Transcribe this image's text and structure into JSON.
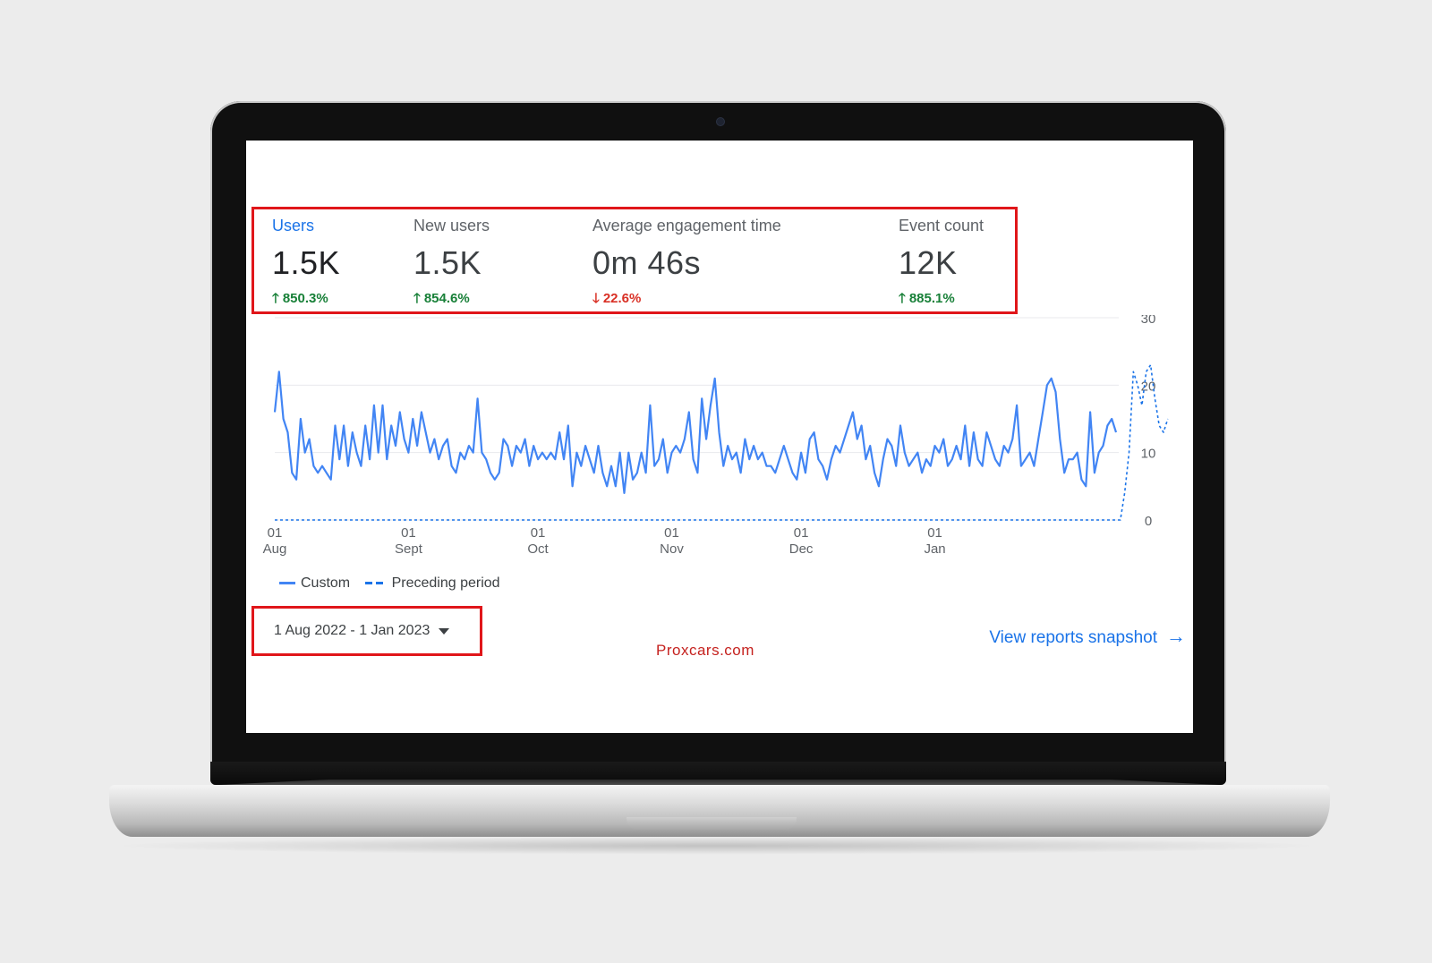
{
  "metrics": [
    {
      "label": "Users",
      "value": "1.5K",
      "change": "850.3%",
      "direction": "up",
      "active": true
    },
    {
      "label": "New users",
      "value": "1.5K",
      "change": "854.6%",
      "direction": "up",
      "active": false
    },
    {
      "label": "Average engagement time",
      "value": "0m 46s",
      "change": "22.6%",
      "direction": "down",
      "active": false
    },
    {
      "label": "Event count",
      "value": "12K",
      "change": "885.1%",
      "direction": "up",
      "active": false
    }
  ],
  "legend": {
    "custom": "Custom",
    "preceding": "Preceding period"
  },
  "date_range": {
    "label": "1 Aug 2022 - 1 Jan 2023"
  },
  "watermark": "Proxcars.com",
  "snapshot_link": {
    "label": "View reports snapshot"
  },
  "colors": {
    "accent": "#1a73e8",
    "line": "#4285f4",
    "up": "#188038",
    "down": "#d93025",
    "highlight_box": "#e0161a"
  },
  "chart_data": {
    "type": "line",
    "ylim": [
      0,
      30
    ],
    "yticks": [
      "30",
      "20",
      "10",
      "0"
    ],
    "xticks": [
      {
        "day": "01",
        "month": "Aug",
        "index": 0
      },
      {
        "day": "01",
        "month": "Sept",
        "index": 31
      },
      {
        "day": "01",
        "month": "Oct",
        "index": 61
      },
      {
        "day": "01",
        "month": "Nov",
        "index": 92
      },
      {
        "day": "01",
        "month": "Dec",
        "index": 122
      },
      {
        "day": "01",
        "month": "Jan",
        "index": 153
      }
    ],
    "series": [
      {
        "name": "Custom",
        "style": "solid",
        "values": [
          16,
          22,
          15,
          13,
          7,
          6,
          15,
          10,
          12,
          8,
          7,
          8,
          7,
          6,
          14,
          9,
          14,
          8,
          13,
          10,
          8,
          14,
          9,
          17,
          10,
          17,
          9,
          14,
          11,
          16,
          12,
          10,
          15,
          11,
          16,
          13,
          10,
          12,
          9,
          11,
          12,
          8,
          7,
          10,
          9,
          11,
          10,
          18,
          10,
          9,
          7,
          6,
          7,
          12,
          11,
          8,
          11,
          10,
          12,
          8,
          11,
          9,
          10,
          9,
          10,
          9,
          13,
          9,
          14,
          5,
          10,
          8,
          11,
          9,
          7,
          11,
          7,
          5,
          8,
          5,
          10,
          4,
          10,
          6,
          7,
          10,
          7,
          17,
          8,
          9,
          12,
          7,
          10,
          11,
          10,
          12,
          16,
          9,
          7,
          18,
          12,
          17,
          21,
          13,
          8,
          11,
          9,
          10,
          7,
          12,
          9,
          11,
          9,
          10,
          8,
          8,
          7,
          9,
          11,
          9,
          7,
          6,
          10,
          7,
          12,
          13,
          9,
          8,
          6,
          9,
          11,
          10,
          12,
          14,
          16,
          12,
          14,
          9,
          11,
          7,
          5,
          9,
          12,
          11,
          8,
          14,
          10,
          8,
          9,
          10,
          7,
          9,
          8,
          11,
          10,
          12,
          8,
          9,
          11,
          9,
          14,
          8,
          13,
          9,
          8,
          13,
          11,
          9,
          8,
          11,
          10,
          12,
          17,
          8,
          9,
          10,
          8,
          12,
          16,
          20,
          21,
          19,
          12,
          7,
          9,
          9,
          10,
          6,
          5,
          16,
          7,
          10,
          11,
          14,
          15,
          13
        ]
      },
      {
        "name": "Preceding period",
        "style": "dashed",
        "values": [
          0,
          0,
          0,
          0,
          0,
          0,
          0,
          0,
          0,
          0,
          0,
          0,
          0,
          0,
          0,
          0,
          0,
          0,
          0,
          0,
          0,
          0,
          0,
          0,
          0,
          0,
          0,
          0,
          0,
          0,
          0,
          0,
          0,
          0,
          0,
          0,
          0,
          0,
          0,
          0,
          0,
          0,
          0,
          0,
          0,
          0,
          0,
          0,
          0,
          0,
          0,
          0,
          0,
          0,
          0,
          0,
          0,
          0,
          0,
          0,
          0,
          0,
          0,
          0,
          0,
          0,
          0,
          0,
          0,
          0,
          0,
          0,
          0,
          0,
          0,
          0,
          0,
          0,
          0,
          0,
          0,
          0,
          0,
          0,
          0,
          0,
          0,
          0,
          0,
          0,
          0,
          0,
          0,
          0,
          0,
          0,
          0,
          0,
          0,
          0,
          0,
          0,
          0,
          0,
          0,
          0,
          0,
          0,
          0,
          0,
          0,
          0,
          0,
          0,
          0,
          0,
          0,
          0,
          0,
          0,
          0,
          0,
          0,
          0,
          0,
          0,
          0,
          0,
          0,
          0,
          0,
          0,
          0,
          0,
          0,
          0,
          0,
          0,
          0,
          0,
          0,
          0,
          0,
          0,
          0,
          0,
          0,
          0,
          0,
          0,
          0,
          0,
          0,
          0,
          0,
          0,
          0,
          0,
          0,
          0,
          0,
          0,
          0,
          0,
          0,
          0,
          0,
          0,
          0,
          0,
          0,
          0,
          0,
          0,
          0,
          0,
          0,
          0,
          0,
          0,
          0,
          0,
          0,
          0,
          0,
          0,
          0,
          0,
          0,
          0,
          0,
          0,
          0,
          0,
          0,
          0,
          0,
          4,
          10,
          22,
          20,
          17,
          22,
          23,
          18,
          14,
          13,
          15
        ]
      }
    ],
    "grid": true,
    "legend_position": "bottom-left"
  }
}
